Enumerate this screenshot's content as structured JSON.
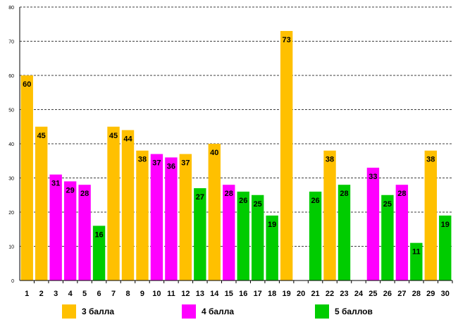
{
  "chart_data": {
    "type": "bar",
    "title": "",
    "xlabel": "",
    "ylabel": "",
    "ylim": [
      0,
      80
    ],
    "yticks": [
      0,
      10,
      20,
      30,
      40,
      50,
      60,
      70,
      80
    ],
    "grid": true,
    "categories": [
      "1",
      "2",
      "3",
      "4",
      "5",
      "6",
      "7",
      "8",
      "9",
      "10",
      "11",
      "12",
      "13",
      "14",
      "15",
      "16",
      "17",
      "18",
      "19",
      "20",
      "21",
      "22",
      "23",
      "24",
      "25",
      "26",
      "27",
      "28",
      "29",
      "30"
    ],
    "series": [
      {
        "name": "3 балла",
        "color": "#FFC000",
        "values": [
          60,
          45,
          null,
          null,
          null,
          null,
          45,
          44,
          38,
          null,
          null,
          37,
          null,
          40,
          null,
          null,
          null,
          null,
          73,
          null,
          null,
          38,
          null,
          null,
          null,
          null,
          null,
          null,
          38,
          null
        ]
      },
      {
        "name": "4 балла",
        "color": "#FF00FF",
        "values": [
          null,
          null,
          31,
          29,
          28,
          null,
          null,
          null,
          null,
          37,
          36,
          null,
          null,
          null,
          28,
          null,
          null,
          null,
          null,
          null,
          null,
          null,
          null,
          null,
          33,
          null,
          28,
          null,
          null,
          null
        ]
      },
      {
        "name": "5 баллов",
        "color": "#00CC00",
        "values": [
          null,
          null,
          null,
          null,
          null,
          16,
          null,
          null,
          null,
          null,
          null,
          null,
          27,
          null,
          null,
          26,
          25,
          19,
          null,
          null,
          26,
          null,
          28,
          null,
          null,
          25,
          null,
          11,
          null,
          19
        ]
      }
    ],
    "legend_position": "bottom"
  }
}
